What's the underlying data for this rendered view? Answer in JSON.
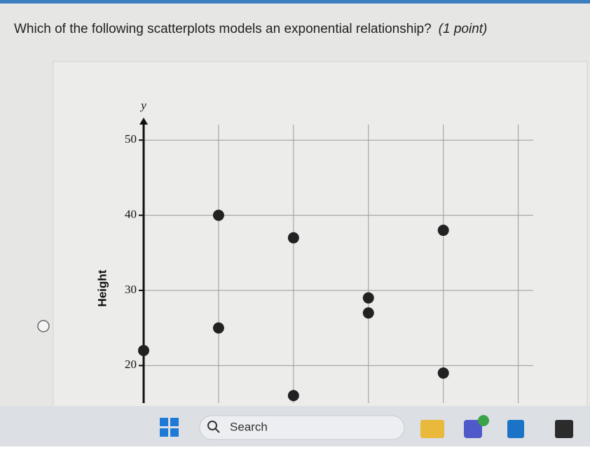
{
  "question": "Which of the following scatterplots models an exponential relationship?",
  "points_label": "(1 point)",
  "chart_data": {
    "type": "scatter",
    "ylabel": "Height",
    "y_axis_symbol": "y",
    "x": [
      0,
      1,
      1,
      2,
      2,
      3,
      3,
      4,
      4
    ],
    "values": [
      22,
      40,
      25,
      37,
      16,
      29,
      27,
      38,
      19
    ],
    "color": "#222222",
    "xlim": [
      0,
      5.2
    ],
    "x_grid_lines": [
      1,
      2,
      3,
      4,
      5
    ],
    "ylim": [
      15,
      53
    ],
    "yticks": [
      20,
      30,
      40,
      50
    ],
    "grid": true
  },
  "taskbar": {
    "search": "Search"
  }
}
